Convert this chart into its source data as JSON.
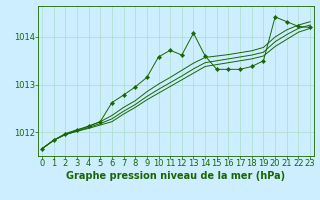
{
  "xlabel": "Graphe pression niveau de la mer (hPa)",
  "x": [
    0,
    1,
    2,
    3,
    4,
    5,
    6,
    7,
    8,
    9,
    10,
    11,
    12,
    13,
    14,
    15,
    16,
    17,
    18,
    19,
    20,
    21,
    22,
    23
  ],
  "smooth_series": [
    [
      1011.65,
      1011.83,
      1011.95,
      1012.02,
      1012.08,
      1012.15,
      1012.22,
      1012.38,
      1012.52,
      1012.68,
      1012.82,
      1012.96,
      1013.1,
      1013.24,
      1013.38,
      1013.42,
      1013.46,
      1013.5,
      1013.54,
      1013.6,
      1013.8,
      1013.95,
      1014.1,
      1014.18
    ],
    [
      1011.65,
      1011.83,
      1011.95,
      1012.02,
      1012.1,
      1012.18,
      1012.28,
      1012.44,
      1012.58,
      1012.75,
      1012.9,
      1013.04,
      1013.18,
      1013.33,
      1013.46,
      1013.5,
      1013.54,
      1013.58,
      1013.62,
      1013.68,
      1013.9,
      1014.05,
      1014.18,
      1014.25
    ],
    [
      1011.65,
      1011.83,
      1011.95,
      1012.04,
      1012.13,
      1012.22,
      1012.35,
      1012.52,
      1012.66,
      1012.85,
      1013.01,
      1013.15,
      1013.3,
      1013.45,
      1013.57,
      1013.6,
      1013.63,
      1013.67,
      1013.71,
      1013.78,
      1014.0,
      1014.15,
      1014.25,
      1014.32
    ]
  ],
  "jagged_series": [
    1011.65,
    1011.83,
    1011.97,
    1012.05,
    1012.12,
    1012.22,
    1012.62,
    1012.78,
    1012.95,
    1013.15,
    1013.58,
    1013.72,
    1013.62,
    1014.08,
    1013.6,
    1013.32,
    1013.32,
    1013.32,
    1013.38,
    1013.5,
    1014.42,
    1014.32,
    1014.22,
    1014.2
  ],
  "line_color": "#1a6600",
  "bg_color": "#cceeff",
  "grid_color": "#aaddcc",
  "text_color": "#1a6600",
  "ylim": [
    1011.5,
    1014.65
  ],
  "yticks": [
    1012,
    1013,
    1014
  ],
  "xticks": [
    0,
    1,
    2,
    3,
    4,
    5,
    6,
    7,
    8,
    9,
    10,
    11,
    12,
    13,
    14,
    15,
    16,
    17,
    18,
    19,
    20,
    21,
    22,
    23
  ],
  "xlabel_fontsize": 7,
  "tick_fontsize": 6
}
